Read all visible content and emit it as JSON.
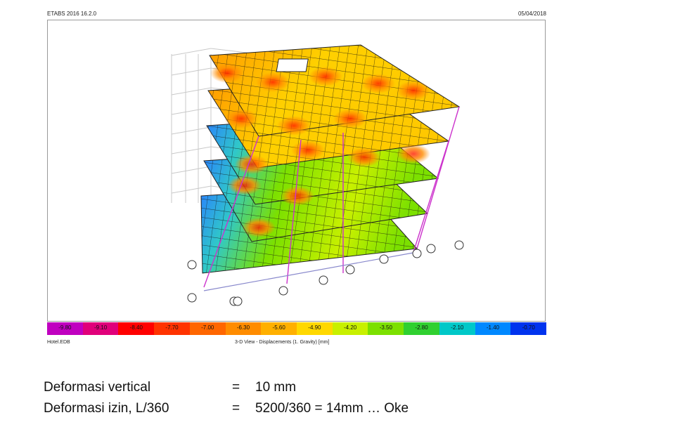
{
  "header": {
    "app_title": "ETABS 2016 16.2.0",
    "date": "05/04/2018"
  },
  "legend": {
    "values": [
      "-9.80",
      "-9.10",
      "-8.40",
      "-7.70",
      "-7.00",
      "-6.30",
      "-5.60",
      "-4.90",
      "-4.20",
      "-3.50",
      "-2.80",
      "-2.10",
      "-1.40",
      "-0.70"
    ],
    "colors": [
      "#c000c0",
      "#e0007a",
      "#ff0000",
      "#ff3300",
      "#ff6600",
      "#ff8c00",
      "#ffb000",
      "#ffd800",
      "#c8f000",
      "#7ce000",
      "#30d030",
      "#00c8c8",
      "#0088ff",
      "#0033ee"
    ]
  },
  "footer": {
    "model_file": "Hotel.EDB",
    "view_caption": "3-D View  - Displacements (1. Gravity)  [mm]"
  },
  "calculation": {
    "rows": [
      {
        "label": "Deformasi vertical",
        "eq": "=",
        "value": "10 mm"
      },
      {
        "label": "Deformasi izin, L/360",
        "eq": "=",
        "value": "5200/360 = 14mm … Oke"
      }
    ]
  }
}
